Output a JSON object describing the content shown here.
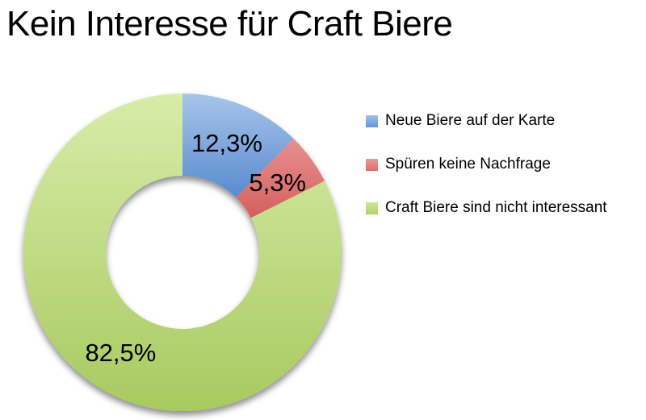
{
  "title": "Kein Interesse für Craft Biere",
  "chart_data": {
    "type": "pie",
    "subtype": "donut",
    "title": "Kein Interesse für Craft Biere",
    "categories": [
      "Neue Biere auf der Karte",
      "Spüren keine Nachfrage",
      "Craft Biere sind nicht interessant"
    ],
    "values": [
      12.3,
      5.3,
      82.5
    ],
    "labels": [
      "12,3%",
      "5,3%",
      "82,5%"
    ],
    "start_angle_deg": 0,
    "direction": "clockwise",
    "donut_hole_ratio": 0.48,
    "legend_position": "right",
    "background_color": "#ffffff",
    "label_color": "#000000",
    "colors": [
      {
        "name": "blue",
        "top": "#a7c4e9",
        "bottom": "#5a8bd0",
        "legend_top": "#9fc1eb",
        "legend_bottom": "#6394d8"
      },
      {
        "name": "red",
        "top": "#e79190",
        "bottom": "#d55f5d",
        "legend_top": "#ec9a94",
        "legend_bottom": "#da6e68"
      },
      {
        "name": "green",
        "top": "#d8eca9",
        "bottom": "#a7ca60",
        "legend_top": "#cbe593",
        "legend_bottom": "#b2d36b"
      }
    ]
  }
}
